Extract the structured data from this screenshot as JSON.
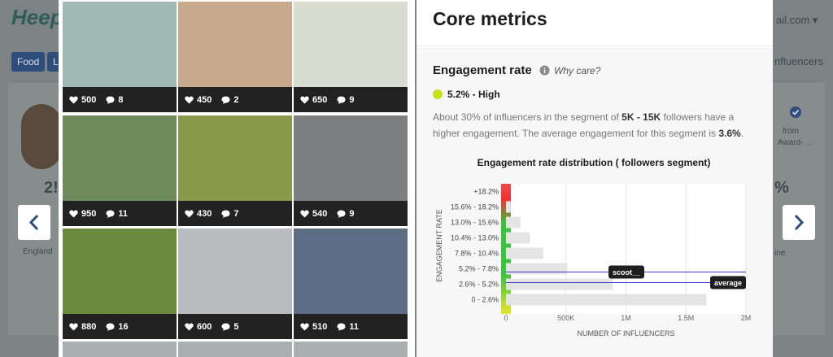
{
  "background": {
    "logo": "Heep",
    "email": "ail.com ▾",
    "tags": [
      "Food",
      "L"
    ],
    "tab": "nfluencers",
    "stat_left": "2!",
    "stat_right": "%",
    "location": "England",
    "right_text": [
      "from",
      "Award- ..."
    ],
    "right_foot": "ine"
  },
  "posts": [
    {
      "likes": 500,
      "comments": 8
    },
    {
      "likes": 450,
      "comments": 2
    },
    {
      "likes": 650,
      "comments": 9
    },
    {
      "likes": 950,
      "comments": 11
    },
    {
      "likes": 430,
      "comments": 7
    },
    {
      "likes": 540,
      "comments": 9
    },
    {
      "likes": 880,
      "comments": 16
    },
    {
      "likes": 600,
      "comments": 5
    },
    {
      "likes": 510,
      "comments": 11
    }
  ],
  "panel": {
    "title": "Core metrics",
    "section": "Engagement rate",
    "help": "Why care?",
    "rate": "5.2% - High",
    "description": [
      {
        "text": "About 30% of influencers in the segment of ",
        "bold": false
      },
      {
        "text": "5K - 15K",
        "bold": true
      },
      {
        "text": " followers have a higher engagement. The average engagement for this segment is ",
        "bold": false
      },
      {
        "text": "3.6%",
        "bold": true
      },
      {
        "text": ".",
        "bold": false
      }
    ]
  },
  "chart": {
    "type": "bar",
    "orientation": "horizontal",
    "title": "Engagement rate distribution ( followers segment)",
    "xlabel": "NUMBER OF INFLUENCERS",
    "ylabel": "ENGAGEMENT RATE",
    "categories": [
      "+18.2%",
      "15.6% - 18.2%",
      "13.0% - 15.6%",
      "10.4% - 13.0%",
      "7.8% - 10.4%",
      "5.2% - 7.8%",
      "2.6% - 5.2%",
      "0 - 2.6%"
    ],
    "values": [
      0,
      40000,
      120000,
      200000,
      310000,
      510000,
      890000,
      1670000
    ],
    "color": "#e4e4e4",
    "xlim": [
      0,
      2000000
    ],
    "xticks": [
      0,
      {
        "value": 500000,
        "label": "500K"
      },
      {
        "value": 1000000,
        "label": "1M"
      },
      {
        "value": 1500000,
        "label": "1.5M"
      },
      {
        "value": 2000000,
        "label": "2M"
      }
    ],
    "grid": true,
    "annotations": [
      {
        "text": "scoot__",
        "row": 5
      },
      {
        "text": "average",
        "row": 6
      }
    ]
  }
}
